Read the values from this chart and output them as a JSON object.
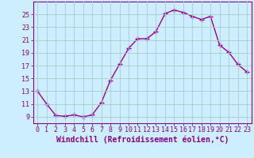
{
  "x": [
    0,
    1,
    2,
    3,
    4,
    5,
    6,
    7,
    8,
    9,
    10,
    11,
    12,
    13,
    14,
    15,
    16,
    17,
    18,
    19,
    20,
    21,
    22,
    23
  ],
  "y": [
    13,
    11,
    9.2,
    9.1,
    9.3,
    9.0,
    9.3,
    11.2,
    14.7,
    17.2,
    19.7,
    21.2,
    21.2,
    22.3,
    25.1,
    25.7,
    25.3,
    24.7,
    24.2,
    24.7,
    20.2,
    19.1,
    17.2,
    16.0
  ],
  "line_color": "#990099",
  "marker": "+",
  "marker_size": 4,
  "bg_color": "#cceeff",
  "grid_color": "#aacccc",
  "xlabel": "Windchill (Refroidissement éolien,°C)",
  "yticks": [
    9,
    11,
    13,
    15,
    17,
    19,
    21,
    23,
    25
  ],
  "xticks": [
    0,
    1,
    2,
    3,
    4,
    5,
    6,
    7,
    8,
    9,
    10,
    11,
    12,
    13,
    14,
    15,
    16,
    17,
    18,
    19,
    20,
    21,
    22,
    23
  ],
  "ylim": [
    8.0,
    27.0
  ],
  "xlim": [
    -0.5,
    23.5
  ],
  "xlabel_fontsize": 7,
  "tick_fontsize": 6,
  "xlabel_color": "#880088",
  "tick_color": "#880088",
  "axis_color": "#880088",
  "line_width": 1.0
}
